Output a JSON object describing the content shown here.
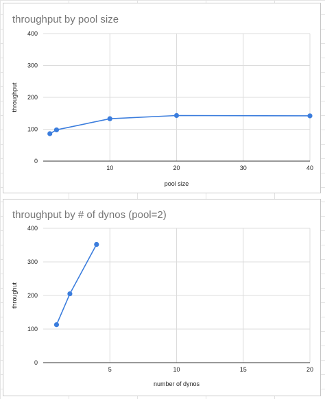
{
  "chart_data": [
    {
      "type": "line",
      "title": "throughput by pool size",
      "xlabel": "pool size",
      "ylabel": "throughput",
      "xlim": [
        0,
        40
      ],
      "ylim": [
        0,
        400
      ],
      "xticks": [
        10,
        20,
        30,
        40
      ],
      "yticks": [
        0,
        100,
        200,
        300,
        400
      ],
      "grid": true,
      "color": "#3b7ddd",
      "x": [
        1,
        2,
        10,
        20,
        40
      ],
      "y": [
        86,
        98,
        133,
        143,
        142
      ]
    },
    {
      "type": "line",
      "title": "throughput by # of dynos (pool=2)",
      "xlabel": "number of dynos",
      "ylabel": "throughut",
      "xlim": [
        0,
        20
      ],
      "ylim": [
        0,
        400
      ],
      "xticks": [
        5,
        10,
        15,
        20
      ],
      "yticks": [
        0,
        100,
        200,
        300,
        400
      ],
      "grid": true,
      "color": "#3b7ddd",
      "x": [
        1,
        2,
        4
      ],
      "y": [
        113,
        205,
        352
      ]
    }
  ]
}
